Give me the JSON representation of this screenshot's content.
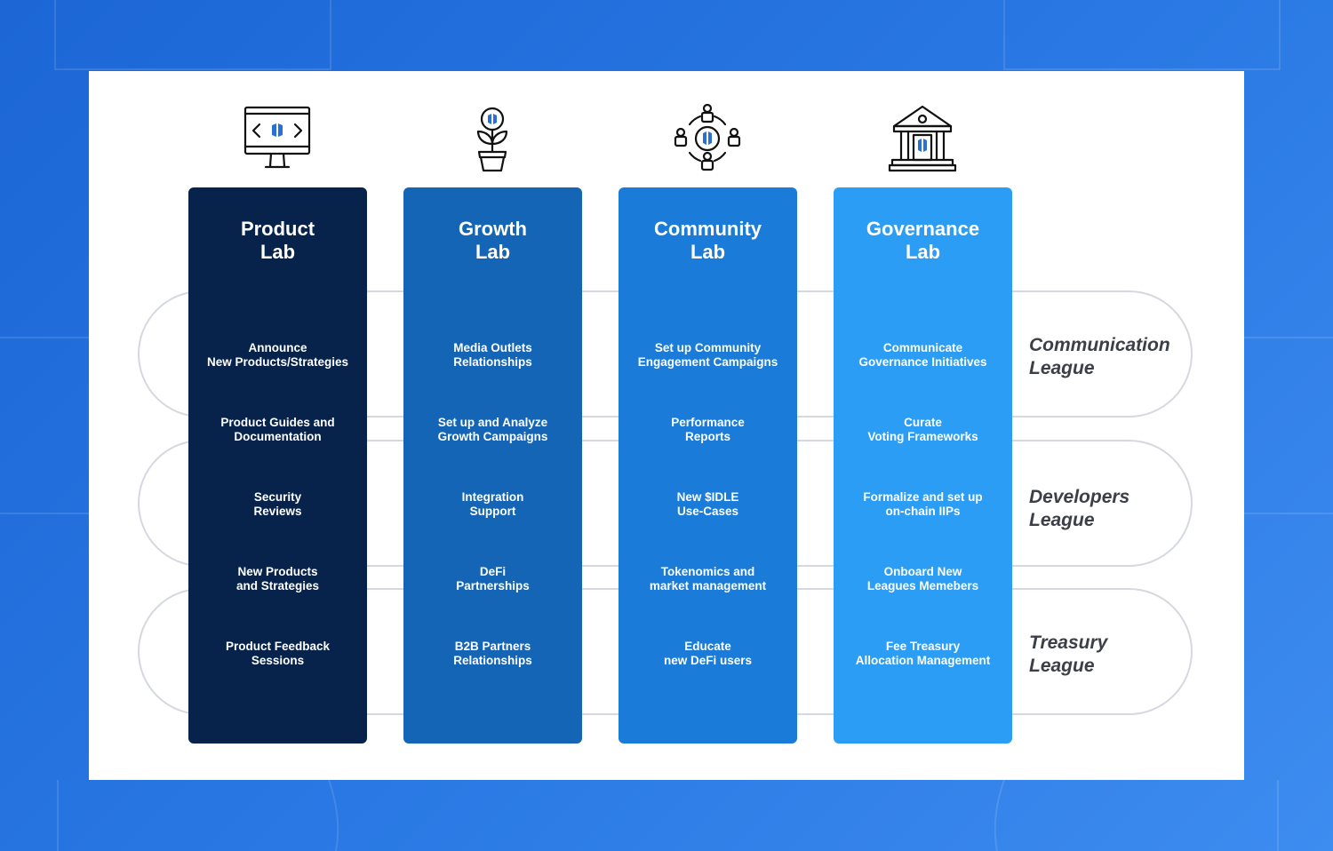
{
  "colors": {
    "background": "#2470dd",
    "card": "#ffffff",
    "pill_border": "#d5d8de",
    "league_text": "#3b3f47",
    "icon_stroke": "#111111",
    "icon_accent": "#2a6fd6"
  },
  "columns": [
    {
      "title": "Product\nLab",
      "color": "#07234b",
      "icon": "monitor-code-icon",
      "tasks": [
        "Announce\nNew Products/Strategies",
        "Product Guides and\nDocumentation",
        "Security\nReviews",
        "New Products\nand Strategies",
        "Product Feedback\nSessions"
      ]
    },
    {
      "title": "Growth\nLab",
      "color": "#1565b6",
      "icon": "potted-plant-icon",
      "tasks": [
        "Media Outlets\nRelationships",
        "Set up and Analyze\nGrowth Campaigns",
        "Integration\nSupport",
        "DeFi\nPartnerships",
        "B2B Partners\nRelationships"
      ]
    },
    {
      "title": "Community\nLab",
      "color": "#1a7bd8",
      "icon": "community-circle-icon",
      "tasks": [
        "Set up Community\nEngagement Campaigns",
        "Performance\nReports",
        "New $IDLE\nUse-Cases",
        "Tokenomics and\nmarket management",
        "Educate\nnew DeFi users"
      ]
    },
    {
      "title": "Governance\nLab",
      "color": "#2c9df5",
      "icon": "government-building-icon",
      "tasks": [
        "Communicate\nGovernance Initiatives",
        "Curate\nVoting Frameworks",
        "Formalize and set up\non-chain IIPs",
        "Onboard New\nLeagues Memebers",
        "Fee Treasury\nAllocation Management"
      ]
    }
  ],
  "leagues": [
    {
      "label": "Communication\nLeague"
    },
    {
      "label": "Developers\nLeague"
    },
    {
      "label": "Treasury\nLeague"
    }
  ]
}
